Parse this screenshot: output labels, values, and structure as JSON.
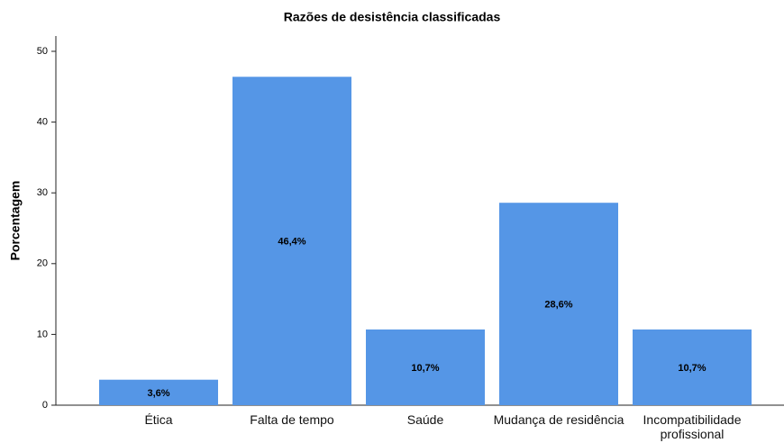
{
  "chart_data": {
    "type": "bar",
    "title": "Razões de desistência classificadas",
    "y_label": "Porcentagem",
    "categories": [
      "Ética",
      "Falta de tempo",
      "Saúde",
      "Mudança de residência",
      "Incompatibilidade profissional"
    ],
    "values": [
      3.6,
      46.4,
      10.7,
      28.6,
      10.7
    ],
    "value_labels": [
      "3,6%",
      "46,4%",
      "10,7%",
      "28,6%",
      "10,7%"
    ],
    "color": "#5596e6",
    "ylim": [
      0,
      50
    ],
    "yticks": [
      0,
      10,
      20,
      30,
      40,
      50
    ],
    "grid": false
  }
}
